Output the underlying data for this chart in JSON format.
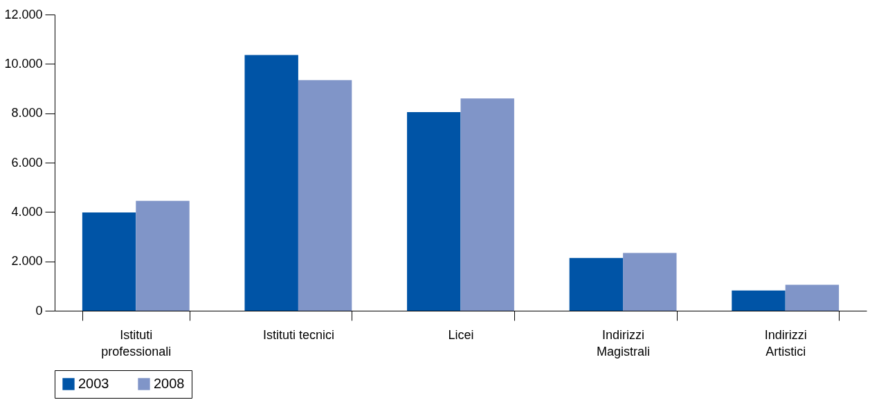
{
  "chart_data": {
    "type": "bar",
    "categories": [
      "Istituti professionali",
      "Istituti tecnici",
      "Licei",
      "Indirizzi Magistrali",
      "Indirizzi Artistici"
    ],
    "series": [
      {
        "name": "2003",
        "color": "#0054a6",
        "values": [
          3980,
          10360,
          8050,
          2140,
          820
        ]
      },
      {
        "name": "2008",
        "color": "#8095c8",
        "values": [
          4450,
          9340,
          8600,
          2340,
          1050
        ]
      }
    ],
    "ylim": [
      0,
      12000
    ],
    "yticks": [
      {
        "value": 0,
        "label": "0"
      },
      {
        "value": 2000,
        "label": "2.000"
      },
      {
        "value": 4000,
        "label": "4.000"
      },
      {
        "value": 6000,
        "label": "6.000"
      },
      {
        "value": 8000,
        "label": "8.000"
      },
      {
        "value": 10000,
        "label": "10.000"
      },
      {
        "value": 12000,
        "label": "12.000"
      }
    ],
    "grid": false,
    "legend": "bottom"
  }
}
